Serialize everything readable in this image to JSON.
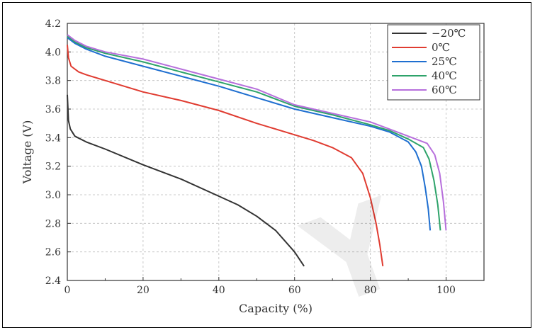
{
  "chart_data": {
    "type": "line",
    "title": "",
    "xlabel": "Capacity (%)",
    "ylabel": "Voltage (V)",
    "xlim": [
      0,
      110
    ],
    "ylim": [
      2.4,
      4.2
    ],
    "grid": true,
    "legend_position": "top-right",
    "x_ticks": [
      "0",
      "20",
      "40",
      "60",
      "80",
      "100"
    ],
    "y_ticks": [
      "2.4",
      "2.6",
      "2.8",
      "3.0",
      "3.2",
      "3.4",
      "3.6",
      "3.8",
      "4.0",
      "4.2"
    ],
    "series": [
      {
        "name": "−20℃",
        "color": "#333333",
        "points": [
          [
            0,
            3.7
          ],
          [
            0.3,
            3.52
          ],
          [
            0.8,
            3.46
          ],
          [
            2,
            3.41
          ],
          [
            5,
            3.37
          ],
          [
            10,
            3.32
          ],
          [
            20,
            3.21
          ],
          [
            30,
            3.11
          ],
          [
            40,
            2.99
          ],
          [
            45,
            2.93
          ],
          [
            50,
            2.85
          ],
          [
            55,
            2.75
          ],
          [
            60,
            2.6
          ],
          [
            62.5,
            2.5
          ]
        ]
      },
      {
        "name": "0℃",
        "color": "#e03c31",
        "points": [
          [
            0,
            4.05
          ],
          [
            0.3,
            3.96
          ],
          [
            1,
            3.9
          ],
          [
            3,
            3.86
          ],
          [
            5,
            3.84
          ],
          [
            10,
            3.8
          ],
          [
            20,
            3.72
          ],
          [
            30,
            3.66
          ],
          [
            40,
            3.59
          ],
          [
            50,
            3.5
          ],
          [
            60,
            3.42
          ],
          [
            65,
            3.38
          ],
          [
            70,
            3.33
          ],
          [
            75,
            3.26
          ],
          [
            78,
            3.15
          ],
          [
            80,
            2.98
          ],
          [
            81.5,
            2.8
          ],
          [
            82.5,
            2.65
          ],
          [
            83.3,
            2.5
          ]
        ]
      },
      {
        "name": "25℃",
        "color": "#1f6fd0",
        "points": [
          [
            0,
            4.1
          ],
          [
            2,
            4.06
          ],
          [
            5,
            4.02
          ],
          [
            10,
            3.97
          ],
          [
            20,
            3.9
          ],
          [
            30,
            3.83
          ],
          [
            40,
            3.76
          ],
          [
            50,
            3.68
          ],
          [
            60,
            3.6
          ],
          [
            70,
            3.54
          ],
          [
            80,
            3.48
          ],
          [
            85,
            3.44
          ],
          [
            90,
            3.37
          ],
          [
            92,
            3.3
          ],
          [
            93.5,
            3.2
          ],
          [
            94.5,
            3.05
          ],
          [
            95.3,
            2.9
          ],
          [
            95.8,
            2.75
          ]
        ]
      },
      {
        "name": "40℃",
        "color": "#2ea36a",
        "points": [
          [
            0,
            4.11
          ],
          [
            2,
            4.07
          ],
          [
            5,
            4.03
          ],
          [
            10,
            3.99
          ],
          [
            20,
            3.93
          ],
          [
            30,
            3.86
          ],
          [
            40,
            3.79
          ],
          [
            50,
            3.72
          ],
          [
            60,
            3.62
          ],
          [
            70,
            3.56
          ],
          [
            80,
            3.49
          ],
          [
            85,
            3.45
          ],
          [
            90,
            3.39
          ],
          [
            94,
            3.33
          ],
          [
            95.5,
            3.25
          ],
          [
            96.8,
            3.1
          ],
          [
            97.8,
            2.93
          ],
          [
            98.5,
            2.75
          ]
        ]
      },
      {
        "name": "60℃",
        "color": "#b76fdc",
        "points": [
          [
            0,
            4.12
          ],
          [
            2,
            4.08
          ],
          [
            5,
            4.04
          ],
          [
            10,
            4.0
          ],
          [
            20,
            3.95
          ],
          [
            30,
            3.88
          ],
          [
            40,
            3.81
          ],
          [
            50,
            3.74
          ],
          [
            60,
            3.63
          ],
          [
            70,
            3.57
          ],
          [
            80,
            3.51
          ],
          [
            85,
            3.46
          ],
          [
            90,
            3.41
          ],
          [
            95,
            3.36
          ],
          [
            97,
            3.28
          ],
          [
            98.3,
            3.15
          ],
          [
            99.3,
            2.95
          ],
          [
            100,
            2.75
          ]
        ]
      }
    ]
  }
}
